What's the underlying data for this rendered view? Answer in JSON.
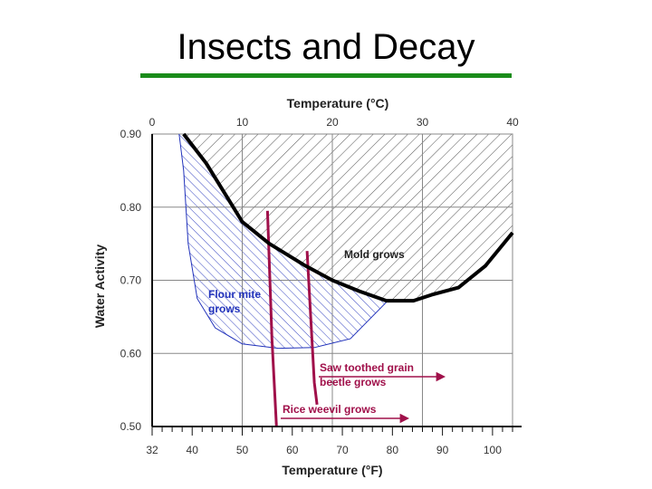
{
  "slide": {
    "title": "Insects and Decay",
    "accent_color": "#1a8c1a"
  },
  "chart_data": {
    "type": "line",
    "xlabel_top": "Temperature (°C)",
    "xlabel_bottom": "Temperature (°F)",
    "ylabel": "Water Activity",
    "x_top_ticks": [
      "0",
      "10",
      "20",
      "30",
      "40"
    ],
    "x_bottom_ticks": [
      "32",
      "40",
      "50",
      "60",
      "70",
      "80",
      "90",
      "100"
    ],
    "y_ticks": [
      "0.50",
      "0.60",
      "0.70",
      "0.80",
      "0.90"
    ],
    "xlim_c": [
      0,
      40
    ],
    "ylim": [
      0.5,
      0.9
    ],
    "grid": true,
    "series": [
      {
        "key": "mold",
        "color": "#000000",
        "points": [
          [
            3.5,
            0.9
          ],
          [
            6,
            0.86
          ],
          [
            10,
            0.78
          ],
          [
            13,
            0.75
          ],
          [
            17,
            0.72
          ],
          [
            20,
            0.7
          ],
          [
            23,
            0.685
          ],
          [
            26,
            0.672
          ],
          [
            29,
            0.672
          ],
          [
            31,
            0.68
          ],
          [
            34,
            0.69
          ],
          [
            37,
            0.72
          ],
          [
            40,
            0.765
          ]
        ]
      },
      {
        "key": "flour_mite",
        "color": "#2233bb",
        "points": [
          [
            3,
            0.9
          ],
          [
            3.5,
            0.85
          ],
          [
            4,
            0.75
          ],
          [
            5,
            0.675
          ],
          [
            7,
            0.635
          ],
          [
            10,
            0.613
          ],
          [
            14,
            0.607
          ],
          [
            18,
            0.608
          ],
          [
            22,
            0.62
          ],
          [
            26,
            0.67
          ]
        ]
      },
      {
        "key": "sawtoothed",
        "color": "#a0104a",
        "points": [
          [
            17.2,
            0.74
          ],
          [
            18,
            0.56
          ],
          [
            18.3,
            0.53
          ]
        ]
      },
      {
        "key": "rice_weevil",
        "color": "#a0104a",
        "points": [
          [
            12.8,
            0.795
          ],
          [
            13.3,
            0.62
          ],
          [
            13.8,
            0.5
          ]
        ]
      }
    ],
    "annotations": {
      "mold": "Mold grows",
      "flour_mite_line1": "Flour mite",
      "flour_mite_line2": "grows",
      "sawtoothed_line1": "Saw toothed grain",
      "sawtoothed_line2": "beetle grows",
      "rice_weevil": "Rice weevil grows"
    }
  }
}
